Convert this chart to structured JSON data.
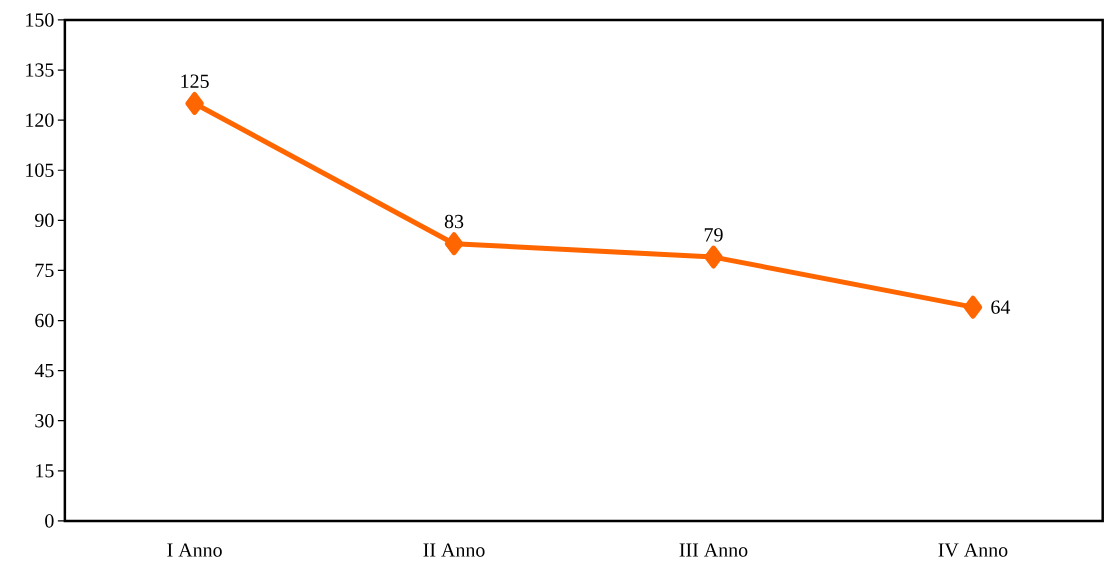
{
  "chart_data": {
    "type": "line",
    "categories": [
      "I Anno",
      "II Anno",
      "III Anno",
      "IV Anno"
    ],
    "values": [
      125,
      83,
      79,
      64
    ],
    "color": "#ff6600",
    "marker": "diamond",
    "line_style": "solid",
    "data_labels": true,
    "ylim": [
      0,
      150
    ],
    "yticks": [
      0,
      15,
      30,
      45,
      60,
      75,
      90,
      105,
      120,
      135,
      150
    ]
  }
}
